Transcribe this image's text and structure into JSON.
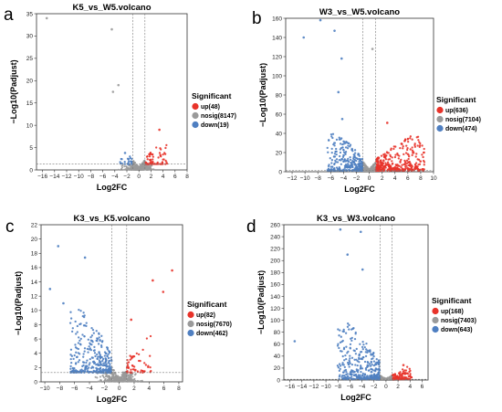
{
  "colors": {
    "up": "#e8332a",
    "nosig": "#9a9a9a",
    "down": "#4f7fc1"
  },
  "chart_data": [
    {
      "panel": "a",
      "type": "scatter",
      "title": "K5_vs_W5.volcano",
      "xlabel": "Log2FC",
      "ylabel": "−Log10(Padjust)",
      "xlim": [
        -17,
        8
      ],
      "ylim": [
        0,
        35
      ],
      "xticks": [
        -16,
        -14,
        -12,
        -10,
        -8,
        -6,
        -4,
        -2,
        0,
        2,
        4,
        6,
        8
      ],
      "yticks": [
        0,
        5,
        10,
        15,
        20,
        25,
        30,
        35
      ],
      "fc_cutoff": 1,
      "p_cutoff": 1.3,
      "legend": {
        "title": "Significant",
        "items": [
          {
            "key": "up",
            "label": "up(48)"
          },
          {
            "key": "nosig",
            "label": "nosig(8147)"
          },
          {
            "key": "down",
            "label": "down(19)"
          }
        ]
      },
      "counts": {
        "up": 48,
        "nosig": 8147,
        "down": 19
      },
      "highlights": [
        {
          "x": -15.3,
          "y": 34,
          "group": "nosig"
        },
        {
          "x": -4.5,
          "y": 31.5,
          "group": "nosig"
        },
        {
          "x": -3.4,
          "y": 19,
          "group": "nosig"
        },
        {
          "x": -4.3,
          "y": 17.5,
          "group": "nosig"
        },
        {
          "x": 3.4,
          "y": 9,
          "group": "up"
        },
        {
          "x": -2.3,
          "y": 3.8,
          "group": "down"
        }
      ],
      "generator": {
        "up_x": [
          1.0,
          4.6
        ],
        "up_y": [
          1.3,
          6.0
        ],
        "down_x": [
          -3.2,
          -1.0
        ],
        "down_y": [
          1.3,
          4.5
        ],
        "nosig_spread": 1.7,
        "nosig_ymax": 1.7,
        "display": {
          "up": 70,
          "nosig": 420,
          "down": 24
        }
      }
    },
    {
      "panel": "b",
      "type": "scatter",
      "title": "W3_vs_W5.volcano",
      "xlabel": "Log2FC",
      "ylabel": "−Log10(Padjust)",
      "xlim": [
        -13,
        10
      ],
      "ylim": [
        0,
        160
      ],
      "xticks": [
        -12,
        -10,
        -8,
        -6,
        -4,
        -2,
        0,
        2,
        4,
        6,
        8,
        10
      ],
      "yticks": [
        0,
        20,
        40,
        60,
        80,
        100,
        120,
        140,
        160
      ],
      "fc_cutoff": 1,
      "p_cutoff": 1.3,
      "legend": {
        "title": "Significant",
        "items": [
          {
            "key": "up",
            "label": "up(636)"
          },
          {
            "key": "nosig",
            "label": "nosig(7104)"
          },
          {
            "key": "down",
            "label": "down(474)"
          }
        ]
      },
      "counts": {
        "up": 636,
        "nosig": 7104,
        "down": 474
      },
      "highlights": [
        {
          "x": -7.6,
          "y": 158,
          "group": "down"
        },
        {
          "x": -10.2,
          "y": 140,
          "group": "down"
        },
        {
          "x": -5.4,
          "y": 147,
          "group": "down"
        },
        {
          "x": -4.3,
          "y": 118,
          "group": "down"
        },
        {
          "x": -4.8,
          "y": 83,
          "group": "down"
        },
        {
          "x": -4.2,
          "y": 55,
          "group": "down"
        },
        {
          "x": 2.8,
          "y": 51,
          "group": "up"
        },
        {
          "x": 0.5,
          "y": 128,
          "group": "nosig"
        }
      ],
      "generator": {
        "up_x": [
          1.0,
          8.5
        ],
        "up_y": [
          1.3,
          38
        ],
        "down_x": [
          -6.5,
          -1.0
        ],
        "down_y": [
          1.3,
          42
        ],
        "nosig_spread": 1.6,
        "nosig_ymax": 8,
        "display": {
          "up": 360,
          "nosig": 420,
          "down": 280
        }
      }
    },
    {
      "panel": "c",
      "type": "scatter",
      "title": "K3_vs_K5.volcano",
      "xlabel": "Log2FC",
      "ylabel": "−Log10(Padjust)",
      "xlim": [
        -10.5,
        8.5
      ],
      "ylim": [
        0,
        22
      ],
      "xticks": [
        -10,
        -8,
        -6,
        -4,
        -2,
        0,
        2,
        4,
        6,
        8
      ],
      "yticks": [
        0,
        2,
        4,
        6,
        8,
        10,
        12,
        14,
        16,
        18,
        20,
        22
      ],
      "fc_cutoff": 1,
      "p_cutoff": 1.3,
      "legend": {
        "title": "Significant",
        "items": [
          {
            "key": "up",
            "label": "up(82)"
          },
          {
            "key": "nosig",
            "label": "nosig(7670)"
          },
          {
            "key": "down",
            "label": "down(462)"
          }
        ]
      },
      "counts": {
        "up": 82,
        "nosig": 7670,
        "down": 462
      },
      "highlights": [
        {
          "x": -8.2,
          "y": 19,
          "group": "down"
        },
        {
          "x": -4.6,
          "y": 17.4,
          "group": "down"
        },
        {
          "x": -9.3,
          "y": 13,
          "group": "down"
        },
        {
          "x": -7.5,
          "y": 11,
          "group": "down"
        },
        {
          "x": 7.1,
          "y": 15.6,
          "group": "up"
        },
        {
          "x": 4.5,
          "y": 14.2,
          "group": "up"
        },
        {
          "x": 5.9,
          "y": 12.6,
          "group": "up"
        },
        {
          "x": 1.6,
          "y": 8.7,
          "group": "up"
        }
      ],
      "generator": {
        "up_x": [
          1.0,
          4.2
        ],
        "up_y": [
          1.3,
          6.5
        ],
        "down_x": [
          -6.5,
          -1.0
        ],
        "down_y": [
          1.3,
          10.5
        ],
        "nosig_spread": 1.7,
        "nosig_ymax": 1.6,
        "display": {
          "up": 55,
          "nosig": 420,
          "down": 300
        }
      }
    },
    {
      "panel": "d",
      "type": "scatter",
      "title": "K3_vs_W3.volcano",
      "xlabel": "Log2FC",
      "ylabel": "−Log10(Padjust)",
      "xlim": [
        -17,
        7
      ],
      "ylim": [
        0,
        260
      ],
      "xticks": [
        -16,
        -14,
        -12,
        -10,
        -8,
        -6,
        -4,
        -2,
        0,
        2,
        4,
        6
      ],
      "yticks": [
        0,
        20,
        40,
        60,
        80,
        100,
        120,
        140,
        160,
        180,
        200,
        220,
        240,
        260
      ],
      "fc_cutoff": 1,
      "p_cutoff": 1.3,
      "legend": {
        "title": "Significant",
        "items": [
          {
            "key": "up",
            "label": "up(168)"
          },
          {
            "key": "nosig",
            "label": "nosig(7403)"
          },
          {
            "key": "down",
            "label": "down(643)"
          }
        ]
      },
      "counts": {
        "up": 168,
        "nosig": 7403,
        "down": 643
      },
      "highlights": [
        {
          "x": -7.6,
          "y": 252,
          "group": "down"
        },
        {
          "x": -4.2,
          "y": 248,
          "group": "down"
        },
        {
          "x": -6.4,
          "y": 210,
          "group": "down"
        },
        {
          "x": -3.9,
          "y": 185,
          "group": "down"
        },
        {
          "x": -15.2,
          "y": 65,
          "group": "down"
        },
        {
          "x": 2.9,
          "y": 25,
          "group": "up"
        }
      ],
      "generator": {
        "up_x": [
          1.0,
          4.2
        ],
        "up_y": [
          1.3,
          22
        ],
        "down_x": [
          -8.0,
          -1.0
        ],
        "down_y": [
          1.3,
          95
        ],
        "nosig_spread": 1.3,
        "nosig_ymax": 6,
        "display": {
          "up": 110,
          "nosig": 400,
          "down": 340
        }
      }
    }
  ]
}
